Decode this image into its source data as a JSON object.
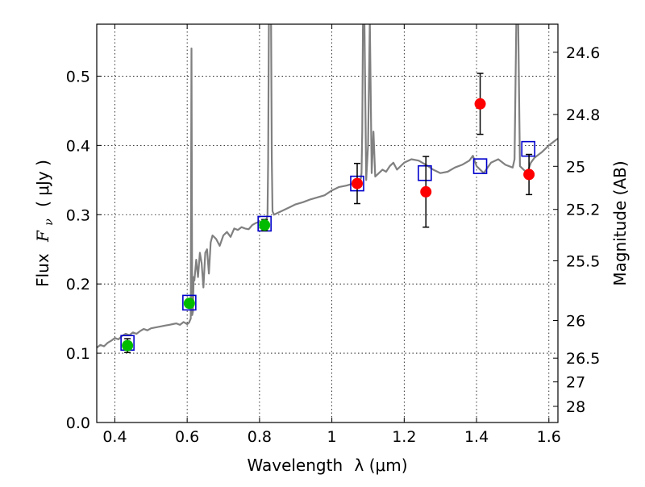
{
  "chart_data": {
    "type": "scatter",
    "xlabel": "Wavelength",
    "xlabel_math": "λ (μm)",
    "ylabel": "Flux",
    "ylabel_math_symbol": "F",
    "ylabel_math_sub": "ν",
    "ylabel_unit": "( μJy )",
    "y2label": "Magnitude (AB)",
    "xlim": [
      0.35,
      1.625
    ],
    "ylim": [
      0.0,
      0.575
    ],
    "grid": true,
    "x_ticks": [
      0.4,
      0.6,
      0.8,
      1.0,
      1.2,
      1.4,
      1.6
    ],
    "x_tick_labels": [
      "0.4",
      "0.6",
      "0.8",
      "1",
      "1.2",
      "1.4",
      "1.6"
    ],
    "y_ticks": [
      0.0,
      0.1,
      0.2,
      0.3,
      0.4,
      0.5
    ],
    "y_tick_labels": [
      "0.0",
      "0.1",
      "0.2",
      "0.3",
      "0.4",
      "0.5"
    ],
    "y2_ticks": [
      {
        "label": "24.6",
        "flux": 0.5345
      },
      {
        "label": "24.8",
        "flux": 0.4446
      },
      {
        "label": "25",
        "flux": 0.3698
      },
      {
        "label": "25.2",
        "flux": 0.3076
      },
      {
        "label": "25.5",
        "flux": 0.2334
      },
      {
        "label": "26",
        "flux": 0.1472
      },
      {
        "label": "26.5",
        "flux": 0.0929
      },
      {
        "label": "27",
        "flux": 0.0586
      },
      {
        "label": "28",
        "flux": 0.0233
      }
    ],
    "series": [
      {
        "type": "line",
        "color": "#808080",
        "x": [
          0.35,
          0.36,
          0.37,
          0.38,
          0.39,
          0.4,
          0.41,
          0.42,
          0.43,
          0.44,
          0.45,
          0.46,
          0.47,
          0.48,
          0.49,
          0.5,
          0.51,
          0.52,
          0.53,
          0.54,
          0.55,
          0.56,
          0.57,
          0.58,
          0.59,
          0.6,
          0.605,
          0.61,
          0.612,
          0.614,
          0.616,
          0.618,
          0.62,
          0.625,
          0.63,
          0.635,
          0.64,
          0.645,
          0.65,
          0.655,
          0.66,
          0.665,
          0.67,
          0.68,
          0.69,
          0.7,
          0.71,
          0.72,
          0.73,
          0.74,
          0.75,
          0.76,
          0.77,
          0.78,
          0.79,
          0.8,
          0.81,
          0.82,
          0.822,
          0.824,
          0.826,
          0.828,
          0.83,
          0.832,
          0.834,
          0.836,
          0.84,
          0.86,
          0.88,
          0.9,
          0.92,
          0.94,
          0.96,
          0.98,
          1.0,
          1.02,
          1.04,
          1.06,
          1.07,
          1.08,
          1.082,
          1.084,
          1.086,
          1.088,
          1.09,
          1.095,
          1.1,
          1.105,
          1.11,
          1.115,
          1.12,
          1.13,
          1.14,
          1.15,
          1.16,
          1.17,
          1.18,
          1.19,
          1.2,
          1.22,
          1.24,
          1.26,
          1.28,
          1.3,
          1.32,
          1.34,
          1.36,
          1.38,
          1.39,
          1.4,
          1.42,
          1.44,
          1.46,
          1.48,
          1.5,
          1.505,
          1.51,
          1.515,
          1.52,
          1.53,
          1.54,
          1.55,
          1.56,
          1.58,
          1.6,
          1.625
        ],
        "y": [
          0.108,
          0.112,
          0.11,
          0.115,
          0.118,
          0.122,
          0.12,
          0.125,
          0.128,
          0.126,
          0.13,
          0.128,
          0.132,
          0.135,
          0.133,
          0.136,
          0.137,
          0.138,
          0.139,
          0.14,
          0.141,
          0.142,
          0.143,
          0.141,
          0.145,
          0.142,
          0.144,
          0.15,
          0.54,
          0.155,
          0.16,
          0.21,
          0.205,
          0.235,
          0.21,
          0.245,
          0.23,
          0.195,
          0.245,
          0.25,
          0.215,
          0.26,
          0.27,
          0.265,
          0.255,
          0.27,
          0.275,
          0.268,
          0.28,
          0.278,
          0.282,
          0.28,
          0.279,
          0.285,
          0.288,
          0.29,
          0.286,
          0.295,
          0.3,
          0.38,
          0.58,
          0.58,
          0.58,
          0.58,
          0.38,
          0.305,
          0.3,
          0.305,
          0.31,
          0.315,
          0.318,
          0.322,
          0.325,
          0.328,
          0.335,
          0.34,
          0.342,
          0.345,
          0.348,
          0.352,
          0.36,
          0.42,
          0.58,
          0.58,
          0.58,
          0.35,
          0.4,
          0.58,
          0.36,
          0.42,
          0.355,
          0.36,
          0.365,
          0.362,
          0.37,
          0.375,
          0.365,
          0.37,
          0.375,
          0.38,
          0.378,
          0.372,
          0.365,
          0.36,
          0.362,
          0.368,
          0.372,
          0.378,
          0.385,
          0.37,
          0.36,
          0.375,
          0.38,
          0.372,
          0.368,
          0.38,
          0.58,
          0.58,
          0.37,
          0.365,
          0.36,
          0.375,
          0.382,
          0.39,
          0.4,
          0.41
        ]
      },
      {
        "type": "scatter",
        "marker": "square-open",
        "color": "#0000cc",
        "x": [
          0.435,
          0.606,
          0.814,
          1.07,
          1.257,
          1.41,
          1.543
        ],
        "y": [
          0.115,
          0.173,
          0.287,
          0.345,
          0.36,
          0.37,
          0.395
        ]
      },
      {
        "type": "scatter",
        "marker": "circle",
        "color": "#00bb00",
        "x": [
          0.435,
          0.606,
          0.814
        ],
        "y": [
          0.111,
          0.172,
          0.285
        ],
        "yerr": [
          0.01,
          0.006,
          0.008
        ]
      },
      {
        "type": "scatter",
        "marker": "circle",
        "color": "#ff0000",
        "x": [
          1.07,
          1.26,
          1.41,
          1.545
        ],
        "y": [
          0.345,
          0.333,
          0.46,
          0.358
        ],
        "yerr": [
          0.029,
          0.051,
          0.044,
          0.029
        ]
      }
    ]
  }
}
